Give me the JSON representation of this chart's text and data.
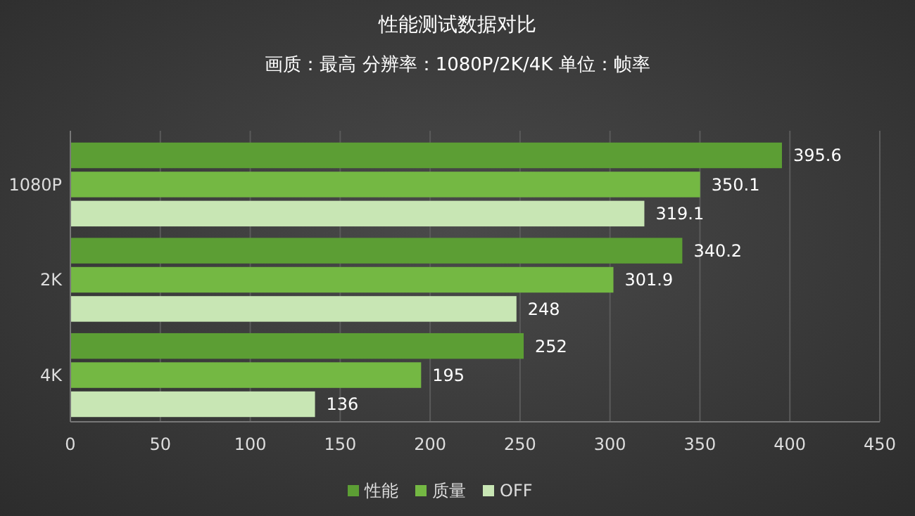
{
  "chart_data": {
    "type": "bar",
    "orientation": "horizontal",
    "title": "性能测试数据对比",
    "subtitle": "画质：最高 分辨率：1080P/2K/4K 单位：帧率",
    "categories": [
      "1080P",
      "2K",
      "4K"
    ],
    "series": [
      {
        "name": "性能",
        "color": "#5c9e34",
        "values": [
          395.6,
          340.2,
          252
        ]
      },
      {
        "name": "质量",
        "color": "#74b843",
        "values": [
          350.1,
          301.9,
          195
        ]
      },
      {
        "name": "OFF",
        "color": "#c8e6b4",
        "values": [
          319.1,
          248,
          136
        ]
      }
    ],
    "xlim": [
      0,
      450
    ],
    "xticks": [
      0,
      50,
      100,
      150,
      200,
      250,
      300,
      350,
      400,
      450
    ],
    "grid": "x",
    "legend": "bottom",
    "data_labels": true
  }
}
